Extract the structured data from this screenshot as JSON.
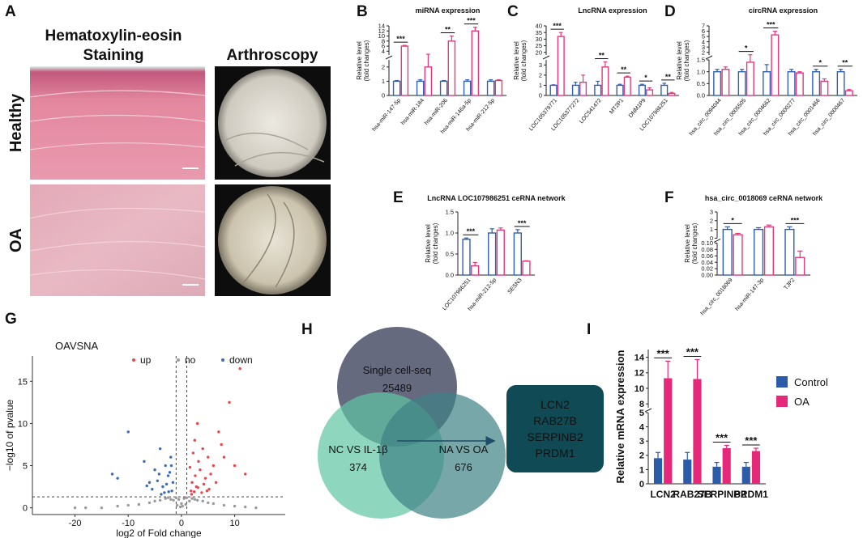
{
  "panel_a": {
    "letter": "A",
    "columns": [
      [
        "Hematoxylin-eosin",
        "Staining"
      ],
      [
        "Arthroscopy"
      ]
    ],
    "rows": [
      "Healthy",
      "OA"
    ]
  },
  "panel_h": {
    "letter": "H",
    "sets": [
      {
        "label": "Single cell-seq",
        "count": 25489
      },
      {
        "label": "NC VS IL-1β",
        "count": 374
      },
      {
        "label": "NA VS OA",
        "count": 676
      }
    ],
    "genes": [
      "LCN2",
      "RAB27B",
      "SERPINB2",
      "PRDM1"
    ]
  },
  "chart_data": [
    {
      "panel": "B",
      "type": "bar",
      "title": "miRNA expression",
      "ylabel": [
        "Relative level",
        "(fold changes)"
      ],
      "categories": [
        "hsa-miR-147-5p",
        "hsa-miR-184",
        "hsa-miR-206",
        "hsa-miR-146a-5p",
        "hsa-miR-212-5p"
      ],
      "series": [
        {
          "color": "#2f5fb0",
          "values": [
            1,
            1,
            1,
            1,
            1
          ],
          "errors": [
            0.05,
            0.1,
            0.05,
            0.1,
            0.1
          ]
        },
        {
          "color": "#e23a7e",
          "values": [
            6,
            2,
            8,
            12,
            1.05
          ],
          "errors": [
            0.3,
            0.8,
            2,
            1.5,
            0.05
          ]
        }
      ],
      "bar_style": "outline",
      "ysegments": [
        {
          "ylim": [
            0,
            2.5
          ],
          "yticks": [
            0,
            1,
            2
          ]
        },
        {
          "ylim": [
            2.5,
            14
          ],
          "yticks": [
            4,
            6,
            8,
            10,
            12,
            14
          ]
        }
      ],
      "significance": [
        "***",
        null,
        "**",
        "***",
        null
      ]
    },
    {
      "panel": "C",
      "type": "bar",
      "title": "LncRNA expression",
      "ylabel": [
        "Relative level",
        "(fold changes)"
      ],
      "categories": [
        "LOC105379771",
        "LOC105377272",
        "LOC541472",
        "MT2P1",
        "DNM1P9",
        "LOC107986251"
      ],
      "series": [
        {
          "color": "#2f5fb0",
          "values": [
            1,
            1,
            1,
            1,
            1,
            1
          ],
          "errors": [
            0.05,
            0.3,
            0.4,
            0.1,
            0.1,
            0.2
          ]
        },
        {
          "color": "#e23a7e",
          "values": [
            32,
            1.3,
            2.8,
            1.8,
            0.55,
            0.2
          ],
          "errors": [
            3,
            0.7,
            0.5,
            0.1,
            0.2,
            0.1
          ]
        }
      ],
      "bar_style": "outline",
      "ysegments": [
        {
          "ylim": [
            0,
            3.5
          ],
          "yticks": [
            0,
            1,
            2,
            3
          ]
        },
        {
          "ylim": [
            18,
            40
          ],
          "yticks": [
            20,
            25,
            30,
            35,
            40
          ]
        }
      ],
      "significance": [
        "***",
        null,
        "**",
        "**",
        "*",
        "**"
      ]
    },
    {
      "panel": "D",
      "type": "bar",
      "title": "circRNA expression",
      "ylabel": [
        "Relative level",
        "(fold changes)"
      ],
      "categories": [
        "hsa_circ_0094044",
        "hsa_circ_0005505",
        "hsa_circ_0004662",
        "hsa_circ_0000277",
        "hsa_circ_0001466",
        "hsa_circ_0000467"
      ],
      "series": [
        {
          "color": "#2f5fb0",
          "values": [
            1,
            1,
            1,
            1,
            1,
            1
          ],
          "errors": [
            0.1,
            0.1,
            0.3,
            0.1,
            0.1,
            0.1
          ]
        },
        {
          "color": "#e23a7e",
          "values": [
            1.1,
            1.4,
            5.3,
            0.95,
            0.6,
            0.2
          ],
          "errors": [
            0.1,
            0.15,
            0.7,
            0.05,
            0.1,
            0.05
          ]
        }
      ],
      "bar_style": "outline",
      "ysegments": [
        {
          "ylim": [
            0,
            1.5
          ],
          "yticks": [
            {
              "value": 0,
              "label": "0.0"
            },
            0.5,
            {
              "value": 1,
              "label": "1.0"
            },
            1.5
          ]
        },
        {
          "ylim": [
            1.5,
            7
          ],
          "yticks": [
            2,
            3,
            4,
            5,
            6,
            7
          ]
        }
      ],
      "significance": [
        null,
        "*",
        "***",
        null,
        "*",
        "**"
      ]
    },
    {
      "panel": "E",
      "type": "bar",
      "title": "LncRNA LOC107986251 ceRNA network",
      "ylabel": [
        "Relative level",
        "(fold changes)"
      ],
      "categories": [
        "LOC107986251",
        "hsa-miR-212-5p",
        "SESN3"
      ],
      "series": [
        {
          "color": "#2f5fb0",
          "values": [
            0.85,
            1,
            1
          ],
          "errors": [
            0.03,
            0.1,
            0.08
          ]
        },
        {
          "color": "#e23a7e",
          "values": [
            0.22,
            1.07,
            0.33
          ],
          "errors": [
            0.08,
            0.05,
            0.01
          ]
        }
      ],
      "bar_style": "outline",
      "ylim": [
        0,
        1.5
      ],
      "yticks": [
        {
          "value": 0,
          "label": "0.0"
        },
        0.5,
        {
          "value": 1,
          "label": "1.0"
        },
        1.5
      ],
      "significance": [
        "***",
        null,
        "***"
      ]
    },
    {
      "panel": "F",
      "type": "bar",
      "title": "hsa_circ_0018069 ceRNA network",
      "ylabel": [
        "Relative level",
        "(fold changes)"
      ],
      "categories": [
        "hsa_circ_0018069",
        "hsa-miR-147-3p",
        "TJP2"
      ],
      "series": [
        {
          "color": "#2f5fb0",
          "values": [
            1,
            1,
            1
          ],
          "errors": [
            0.3,
            0.2,
            0.3
          ]
        },
        {
          "color": "#e23a7e",
          "values": [
            0.4,
            1.3,
            0.055
          ],
          "errors": [
            0.15,
            0.2,
            0.02
          ]
        }
      ],
      "bar_style": "outline",
      "ysegments": [
        {
          "ylim": [
            0,
            0.1
          ],
          "yticks": [
            {
              "value": 0,
              "label": "0.00"
            },
            {
              "value": 0.02,
              "label": "0.02"
            },
            {
              "value": 0.04,
              "label": "0.04"
            },
            {
              "value": 0.06,
              "label": "0.06"
            },
            {
              "value": 0.08,
              "label": "0.08"
            },
            {
              "value": 0.1,
              "label": "0.10"
            }
          ]
        },
        {
          "ylim": [
            0,
            3
          ],
          "yticks": [
            0,
            1,
            2,
            3
          ]
        }
      ],
      "significance": [
        "*",
        null,
        "***"
      ]
    },
    {
      "panel": "G",
      "type": "scatter",
      "title": "OAVSNA",
      "xlabel": "log2 of Fold change",
      "ylabel": "−log10 of pvalue",
      "xlim": [
        -28,
        19.5
      ],
      "ylim": [
        -0.8,
        18
      ],
      "xticks": [
        -20,
        -10,
        0,
        10
      ],
      "yticks": [
        0,
        5,
        10,
        15
      ],
      "threshold_x": [
        -1,
        1
      ],
      "threshold_y": 1.3,
      "series": [
        {
          "name": "up",
          "color": "#e8474c",
          "x": [
            11,
            9,
            12,
            2.5,
            3,
            4,
            5,
            6,
            3.5,
            2,
            4.5,
            7,
            8,
            2.8,
            3.2,
            5.5,
            1.8,
            2.2,
            6.5,
            4.2,
            3.8,
            1.6,
            2.6,
            5.2,
            10,
            7.5,
            3.1,
            2.4,
            1.9,
            4.8
          ],
          "values": [
            16.5,
            12.5,
            4,
            8,
            10,
            7,
            6,
            5,
            4.5,
            3,
            3.5,
            9,
            6,
            2.5,
            5.5,
            4,
            2,
            6.5,
            3,
            2.8,
            1.8,
            4.8,
            3.8,
            2.2,
            5,
            7.5,
            2.4,
            1.9,
            1.6,
            2
          ]
        },
        {
          "name": "no",
          "color": "#9a9a9a",
          "x": [
            -20,
            -18,
            -15,
            -12,
            -10,
            -8,
            -6,
            -5,
            -4,
            -3,
            -2.5,
            -2,
            -1.5,
            -1,
            -0.5,
            0,
            0.5,
            1,
            1.5,
            2,
            2.5,
            3,
            4,
            5,
            6,
            8,
            10,
            12,
            14,
            -0.8,
            0.8,
            0.2,
            -0.2
          ],
          "values": [
            0,
            0,
            0,
            0.2,
            0.3,
            0.4,
            0.6,
            0.8,
            0.9,
            1.1,
            1.2,
            1,
            0.9,
            1.2,
            1,
            0.5,
            1.1,
            1.2,
            0.8,
            1.1,
            1,
            0.9,
            0.8,
            0.6,
            0.5,
            0.3,
            0.2,
            0.1,
            0,
            0.3,
            0.4,
            0.2,
            0.1
          ]
        },
        {
          "name": "down",
          "color": "#3b6cb7",
          "x": [
            -10,
            -13,
            -12,
            -2,
            -3,
            -4,
            -5,
            -6,
            -2.5,
            -3.5,
            -1.8,
            -4.5,
            -2.2,
            -3.2,
            -5.5,
            -1.6,
            -2.8,
            -7,
            -3.8,
            -2.4,
            -4.2,
            -1.9,
            -6.5
          ],
          "values": [
            9,
            4,
            3.5,
            6,
            5,
            7,
            4.5,
            3,
            3.8,
            2.5,
            2,
            3.2,
            4.2,
            1.8,
            2.2,
            3,
            2.8,
            5.5,
            1.6,
            1.9,
            4,
            5,
            2.6
          ]
        }
      ]
    },
    {
      "panel": "I",
      "type": "bar",
      "ylabel": "Relative mRNA expression",
      "categories": [
        "LCN2",
        "RAB27B",
        "SERPINB2",
        "PRDM1"
      ],
      "series": [
        {
          "name": "Control",
          "color": "#2a5caa",
          "values": [
            1.8,
            1.7,
            1.2,
            1.2
          ],
          "errors": [
            0.4,
            0.5,
            0.3,
            0.3
          ]
        },
        {
          "name": "OA",
          "color": "#e6287a",
          "values": [
            11.3,
            11.2,
            2.5,
            2.3
          ],
          "errors": [
            2.2,
            2.5,
            0.2,
            0.2
          ]
        }
      ],
      "bar_style": "filled",
      "legend": "right",
      "ysegments": [
        {
          "ylim": [
            0,
            5
          ],
          "yticks": [
            0,
            1,
            2,
            3,
            4,
            5
          ]
        },
        {
          "ylim": [
            7.5,
            15
          ],
          "yticks": [
            8,
            10,
            12,
            14
          ]
        }
      ],
      "significance": [
        "***",
        "***",
        "***",
        "***"
      ]
    }
  ]
}
